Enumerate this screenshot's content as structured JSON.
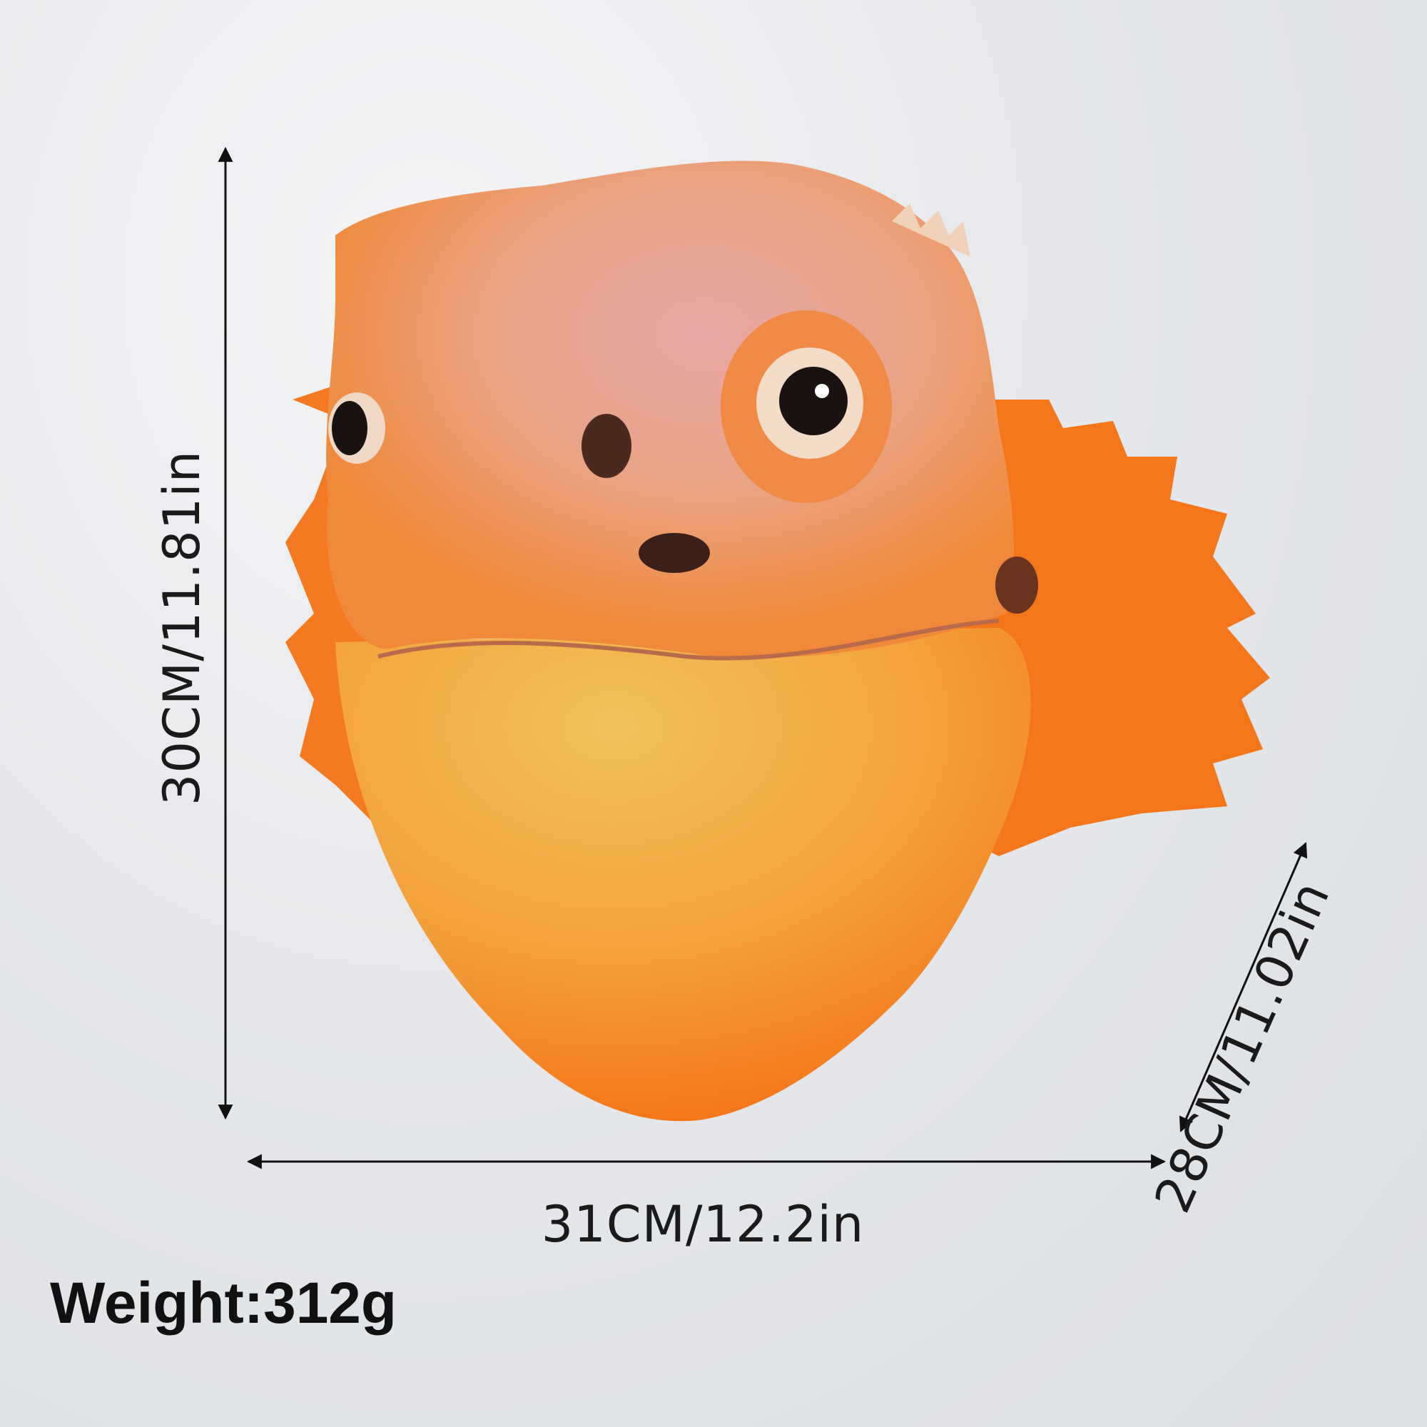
{
  "dimensions": {
    "height": "30CM/11.81in",
    "width": "31CM/12.2in",
    "depth": "28CM/11.02in"
  },
  "weight": "Weight:312g",
  "colors": {
    "background": "#e4e6e9",
    "mask_orange": "#f47a1e",
    "mask_pink": "#e9a79f",
    "mask_yellow": "#f0b040",
    "text": "#111111"
  }
}
